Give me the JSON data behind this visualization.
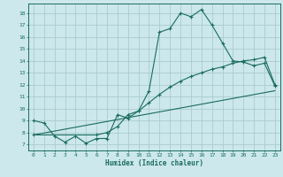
{
  "xlabel": "Humidex (Indice chaleur)",
  "bg_color": "#cce8ec",
  "grid_color": "#aacccc",
  "line_color": "#1a6b60",
  "xlim": [
    -0.5,
    23.5
  ],
  "ylim": [
    6.5,
    18.8
  ],
  "xticks": [
    0,
    1,
    2,
    3,
    4,
    5,
    6,
    7,
    8,
    9,
    10,
    11,
    12,
    13,
    14,
    15,
    16,
    17,
    18,
    19,
    20,
    21,
    22,
    23
  ],
  "yticks": [
    7,
    8,
    9,
    10,
    11,
    12,
    13,
    14,
    15,
    16,
    17,
    18
  ],
  "curve1_x": [
    0,
    1,
    2,
    3,
    4,
    5,
    6,
    7,
    8,
    9,
    10,
    11,
    12,
    13,
    14,
    15,
    16,
    17,
    18,
    19,
    20,
    21,
    22,
    23
  ],
  "curve1_y": [
    9.0,
    8.8,
    7.7,
    7.2,
    7.7,
    7.1,
    7.5,
    7.5,
    9.5,
    9.2,
    9.8,
    11.5,
    16.4,
    16.7,
    18.0,
    17.7,
    18.3,
    17.0,
    15.5,
    14.0,
    13.9,
    13.6,
    13.8,
    11.9
  ],
  "curve2_x": [
    0,
    6,
    7,
    8,
    9,
    10,
    11,
    12,
    13,
    14,
    15,
    16,
    17,
    18,
    19,
    20,
    21,
    22,
    23
  ],
  "curve2_y": [
    7.8,
    7.8,
    8.0,
    8.5,
    9.5,
    9.8,
    10.5,
    11.2,
    11.8,
    12.3,
    12.7,
    13.0,
    13.3,
    13.5,
    13.8,
    14.0,
    14.1,
    14.3,
    12.0
  ],
  "curve3_x": [
    0,
    23
  ],
  "curve3_y": [
    7.8,
    11.5
  ]
}
